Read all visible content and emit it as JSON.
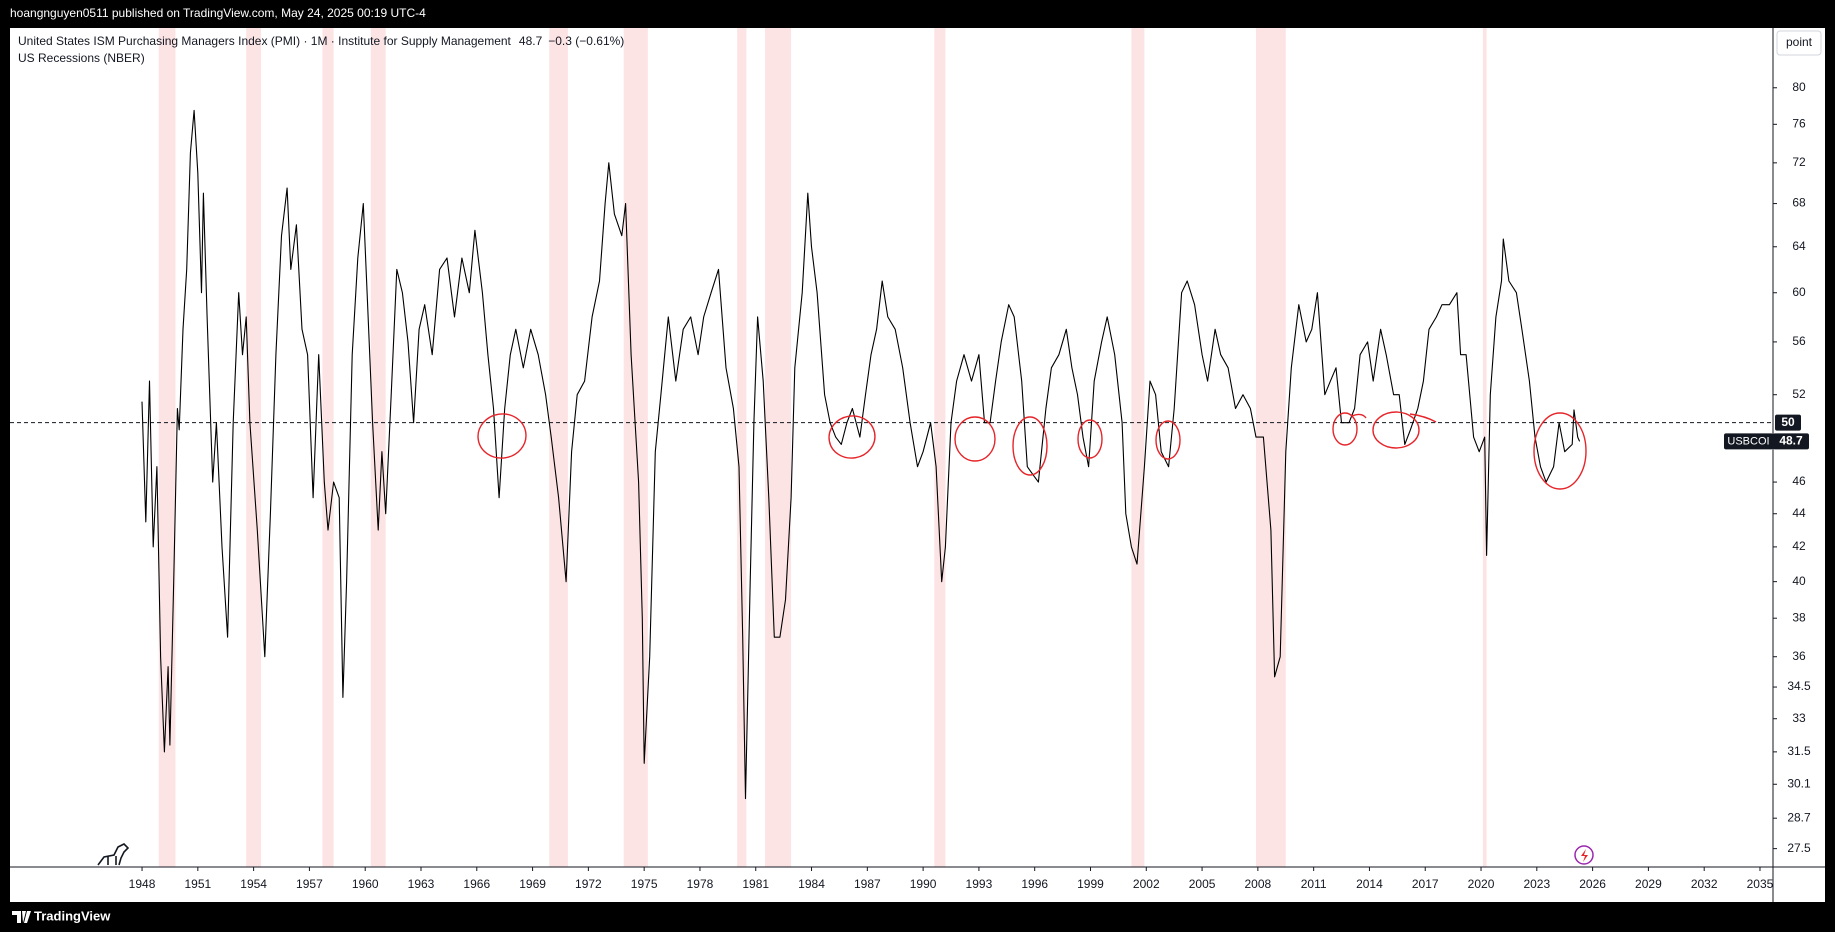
{
  "header": {
    "publisher_line": "hoangnguyen0511 published on TradingView.com, May 24, 2025 00:19 UTC-4"
  },
  "footer": {
    "brand": "TradingView"
  },
  "chart_data": {
    "type": "line",
    "title": "United States ISM Purchasing Managers Index (PMI) · 1M · Institute for Supply Management",
    "last_value": 48.7,
    "change": "−0.3 (−0.61%)",
    "overlay_label": "US Recessions (NBER)",
    "y_unit": "point",
    "symbol": "USBCOI",
    "color": "#000000",
    "log_scale": true,
    "grid": false,
    "reference_line": 50,
    "recession_color": "#fde4e4",
    "recessions": [
      [
        1948.9,
        1949.8
      ],
      [
        1953.6,
        1954.4
      ],
      [
        1957.7,
        1958.3
      ],
      [
        1960.3,
        1961.1
      ],
      [
        1969.9,
        1970.9
      ],
      [
        1973.9,
        1975.2
      ],
      [
        1980.0,
        1980.5
      ],
      [
        1981.5,
        1982.9
      ],
      [
        1990.6,
        1991.2
      ],
      [
        2001.2,
        2001.9
      ],
      [
        2007.9,
        2009.5
      ],
      [
        2020.1,
        2020.3
      ]
    ],
    "x": [
      1948.0,
      1948.2,
      1948.4,
      1948.6,
      1948.8,
      1949.0,
      1949.2,
      1949.4,
      1949.5,
      1949.7,
      1949.9,
      1950.0,
      1950.2,
      1950.4,
      1950.6,
      1950.8,
      1951.0,
      1951.2,
      1951.3,
      1951.5,
      1951.8,
      1952.0,
      1952.3,
      1952.6,
      1952.9,
      1953.2,
      1953.4,
      1953.6,
      1953.8,
      1954.2,
      1954.6,
      1954.9,
      1955.2,
      1955.5,
      1955.8,
      1956.0,
      1956.3,
      1956.6,
      1956.9,
      1957.2,
      1957.5,
      1957.8,
      1958.0,
      1958.3,
      1958.6,
      1958.8,
      1959.0,
      1959.3,
      1959.6,
      1959.9,
      1960.1,
      1960.4,
      1960.7,
      1960.9,
      1961.1,
      1961.4,
      1961.7,
      1962.0,
      1962.3,
      1962.6,
      1962.9,
      1963.2,
      1963.6,
      1964.0,
      1964.4,
      1964.8,
      1965.2,
      1965.6,
      1965.9,
      1966.3,
      1966.6,
      1966.9,
      1967.2,
      1967.5,
      1967.8,
      1968.1,
      1968.5,
      1968.9,
      1969.3,
      1969.7,
      1970.0,
      1970.4,
      1970.8,
      1971.1,
      1971.4,
      1971.8,
      1972.2,
      1972.6,
      1972.9,
      1973.1,
      1973.4,
      1973.8,
      1974.0,
      1974.3,
      1974.7,
      1974.9,
      1975.0,
      1975.3,
      1975.6,
      1975.9,
      1976.3,
      1976.7,
      1977.1,
      1977.5,
      1977.9,
      1978.2,
      1978.6,
      1979.0,
      1979.4,
      1979.8,
      1980.1,
      1980.3,
      1980.45,
      1980.7,
      1980.9,
      1981.1,
      1981.4,
      1981.7,
      1982.0,
      1982.3,
      1982.6,
      1982.9,
      1983.1,
      1983.5,
      1983.8,
      1984.0,
      1984.3,
      1984.7,
      1985.0,
      1985.3,
      1985.6,
      1985.9,
      1986.2,
      1986.6,
      1986.9,
      1987.2,
      1987.5,
      1987.8,
      1988.1,
      1988.5,
      1988.9,
      1989.3,
      1989.7,
      1990.0,
      1990.4,
      1990.7,
      1991.0,
      1991.2,
      1991.5,
      1991.8,
      1992.2,
      1992.6,
      1993.0,
      1993.3,
      1993.6,
      1993.9,
      1994.2,
      1994.6,
      1994.9,
      1995.3,
      1995.6,
      1995.9,
      1996.2,
      1996.6,
      1996.9,
      1997.3,
      1997.7,
      1998.0,
      1998.3,
      1998.6,
      1998.9,
      1999.2,
      1999.6,
      1999.9,
      2000.3,
      2000.7,
      2000.9,
      2001.2,
      2001.5,
      2001.9,
      2002.2,
      2002.5,
      2002.8,
      2003.2,
      2003.5,
      2003.9,
      2004.2,
      2004.6,
      2005.0,
      2005.3,
      2005.7,
      2006.0,
      2006.4,
      2006.8,
      2007.2,
      2007.6,
      2007.9,
      2008.3,
      2008.7,
      2008.9,
      2009.2,
      2009.5,
      2009.8,
      2010.2,
      2010.6,
      2010.9,
      2011.2,
      2011.6,
      2011.9,
      2012.2,
      2012.5,
      2012.9,
      2013.2,
      2013.5,
      2013.9,
      2014.2,
      2014.6,
      2014.9,
      2015.3,
      2015.6,
      2015.9,
      2016.2,
      2016.6,
      2016.9,
      2017.2,
      2017.6,
      2017.9,
      2018.3,
      2018.7,
      2018.9,
      2019.2,
      2019.6,
      2019.9,
      2020.2,
      2020.3,
      2020.5,
      2020.8,
      2021.1,
      2021.2,
      2021.5,
      2021.9,
      2022.2,
      2022.6,
      2022.9,
      2023.2,
      2023.5,
      2023.9,
      2024.2,
      2024.5,
      2024.9,
      2025.0,
      2025.2,
      2025.3
    ],
    "values": [
      51.5,
      43.5,
      53,
      42,
      47,
      36,
      31.5,
      35.5,
      31.8,
      40,
      51,
      49.5,
      57,
      62,
      73,
      77.5,
      71,
      60,
      69,
      58,
      46,
      50,
      42,
      37,
      50,
      60,
      55,
      58,
      50,
      43,
      36,
      44,
      55,
      65,
      69.5,
      62,
      66,
      57,
      55,
      45,
      55,
      46,
      43,
      46,
      45,
      34,
      40,
      55,
      63,
      68,
      60,
      50,
      43,
      48,
      44,
      52,
      62,
      60,
      56,
      50,
      57,
      59,
      55,
      62,
      63,
      58,
      63,
      60,
      65.5,
      60,
      55,
      51,
      45,
      51,
      55,
      57,
      54,
      57,
      55,
      52,
      49,
      45,
      40,
      48,
      52,
      53,
      58,
      61,
      68,
      72,
      67,
      65,
      68,
      55,
      46,
      38,
      31,
      36,
      48,
      52,
      58,
      53,
      57,
      58,
      55,
      58,
      60,
      62,
      54,
      51,
      47,
      37,
      29.5,
      40,
      50,
      58,
      53,
      45,
      37,
      37,
      39,
      45,
      54,
      60,
      69,
      64,
      60,
      52,
      50,
      49,
      48.5,
      50,
      51,
      49,
      52,
      55,
      57,
      61,
      58,
      57,
      54,
      50,
      47,
      48,
      50,
      47,
      40,
      42,
      50,
      53,
      55,
      53,
      55,
      50,
      50,
      53,
      56,
      59,
      58,
      53,
      47,
      46.5,
      46,
      51,
      54,
      55,
      57,
      54,
      52,
      49,
      47,
      53,
      56,
      58,
      55,
      50,
      44,
      42,
      41,
      47,
      53,
      52,
      48,
      47,
      51,
      60,
      61,
      59,
      55,
      53,
      57,
      55,
      54,
      51,
      52,
      51,
      49,
      49,
      43,
      35,
      36,
      48,
      54,
      59,
      56,
      57,
      60,
      52,
      53,
      54,
      50,
      50,
      51,
      55,
      56,
      53,
      57,
      55,
      52,
      52,
      48.5,
      49.5,
      51,
      53,
      57,
      58,
      59,
      59,
      60,
      55,
      55,
      49,
      48,
      49,
      41.5,
      52,
      58,
      61,
      64.7,
      61,
      60,
      57,
      53,
      49,
      47,
      46,
      47,
      50,
      48,
      48.5,
      50.9,
      49,
      48.7
    ],
    "xlim": [
      1940.9,
      2035.7
    ],
    "xticks": [
      1948,
      1951,
      1954,
      1957,
      1960,
      1963,
      1966,
      1969,
      1972,
      1975,
      1978,
      1981,
      1984,
      1987,
      1990,
      1993,
      1996,
      1999,
      2002,
      2005,
      2008,
      2011,
      2014,
      2017,
      2020,
      2023,
      2026,
      2029,
      2032,
      2035
    ],
    "ylim": [
      26.8,
      87.0
    ],
    "yticks": [
      80,
      76,
      72,
      68,
      64,
      60,
      56,
      52,
      46,
      44,
      42,
      40,
      38,
      36,
      34.5,
      33,
      31.5,
      30.1,
      28.7,
      27.5
    ]
  }
}
